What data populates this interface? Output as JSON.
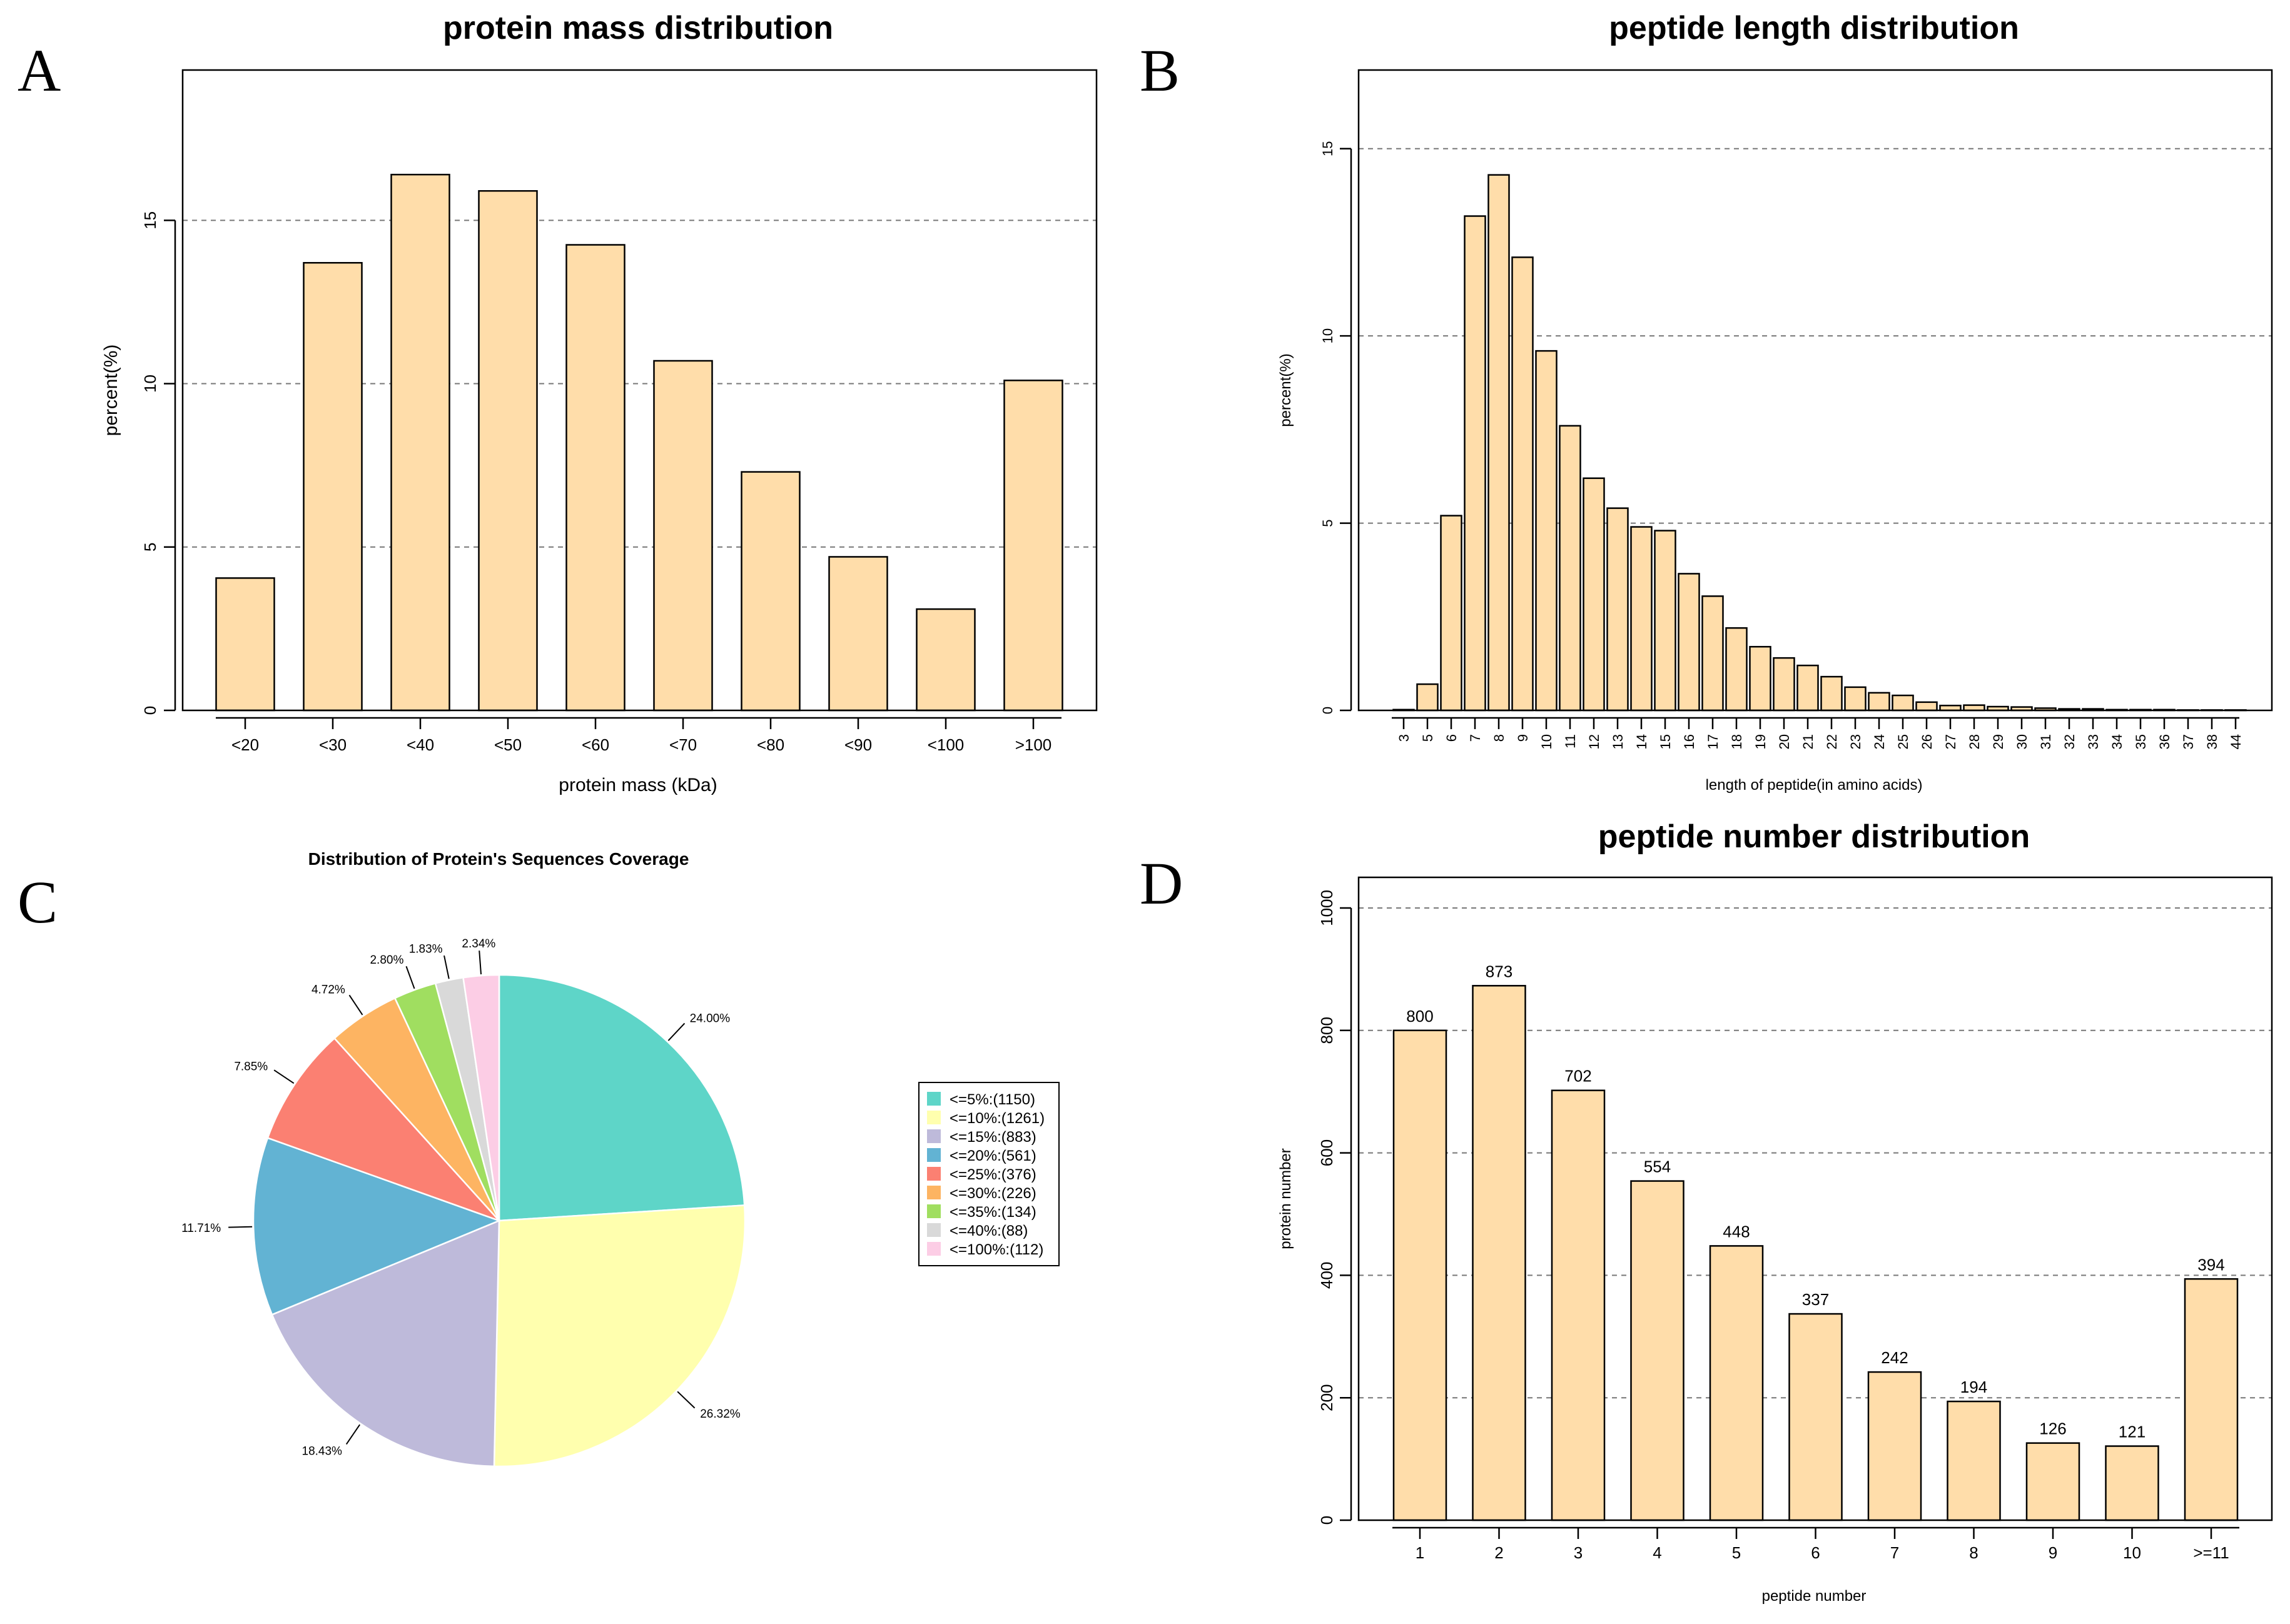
{
  "panels": {
    "a": {
      "letter": "A"
    },
    "b": {
      "letter": "B"
    },
    "c": {
      "letter": "C"
    },
    "d": {
      "letter": "D"
    }
  },
  "colors": {
    "bar_fill": "#FFDDAA",
    "grid": "#777777"
  },
  "chart_data": [
    {
      "id": "protein-mass",
      "type": "bar",
      "title": "protein mass distribution",
      "xlabel": "protein mass (kDa)",
      "ylabel": "percent(%)",
      "categories": [
        "<20",
        "<30",
        "<40",
        "<50",
        "<60",
        "<70",
        "<80",
        "<90",
        "<100",
        ">100"
      ],
      "values": [
        4.05,
        13.7,
        16.4,
        15.9,
        14.25,
        10.7,
        7.3,
        4.7,
        3.1,
        10.1
      ],
      "ylim": [
        0,
        19.6
      ],
      "yticks": [
        0,
        5,
        10,
        15
      ],
      "gridlines": [
        5,
        10,
        15
      ]
    },
    {
      "id": "peptide-length",
      "type": "bar",
      "title": "peptide length distribution",
      "xlabel": "length of peptide(in amino acids)",
      "ylabel": "percent(%)",
      "categories": [
        "3",
        "5",
        "6",
        "7",
        "8",
        "9",
        "10",
        "11",
        "12",
        "13",
        "14",
        "15",
        "16",
        "17",
        "18",
        "19",
        "20",
        "21",
        "22",
        "23",
        "24",
        "25",
        "26",
        "27",
        "28",
        "29",
        "30",
        "31",
        "32",
        "33",
        "34",
        "35",
        "36",
        "37",
        "38",
        "44"
      ],
      "values": [
        0.02,
        0.7,
        5.2,
        13.2,
        14.3,
        12.1,
        9.6,
        7.6,
        6.2,
        5.4,
        4.9,
        4.8,
        3.65,
        3.05,
        2.2,
        1.7,
        1.4,
        1.2,
        0.9,
        0.62,
        0.47,
        0.4,
        0.22,
        0.13,
        0.14,
        0.1,
        0.09,
        0.06,
        0.04,
        0.04,
        0.02,
        0.02,
        0.02,
        0.01,
        0.01,
        0.01
      ],
      "ylim": [
        0,
        17.1
      ],
      "yticks": [
        0,
        5,
        10,
        15
      ],
      "gridlines": [
        5,
        10,
        15
      ]
    },
    {
      "id": "sequence-coverage",
      "type": "pie",
      "title": "Distribution of Protein's Sequences Coverage",
      "slices": [
        {
          "label": "<=5%:(1150)",
          "percent_label": "24.00%",
          "value": 1150,
          "color": "#5ED5C8"
        },
        {
          "label": "<=10%:(1261)",
          "percent_label": "26.32%",
          "value": 1261,
          "color": "#FFFFAE"
        },
        {
          "label": "<=15%:(883)",
          "percent_label": "18.43%",
          "value": 883,
          "color": "#BEBADA"
        },
        {
          "label": "<=20%:(561)",
          "percent_label": "11.71%",
          "value": 561,
          "color": "#62B3D3"
        },
        {
          "label": "<=25%:(376)",
          "percent_label": "7.85%",
          "value": 376,
          "color": "#FB8072"
        },
        {
          "label": "<=30%:(226)",
          "percent_label": "4.72%",
          "value": 226,
          "color": "#FDB462"
        },
        {
          "label": "<=35%:(134)",
          "percent_label": "2.80%",
          "value": 134,
          "color": "#A0DE60"
        },
        {
          "label": "<=40%:(88)",
          "percent_label": "1.83%",
          "value": 88,
          "color": "#D9D9D9"
        },
        {
          "label": "<=100%:(112)",
          "percent_label": "2.34%",
          "value": 112,
          "color": "#FCCDE5"
        }
      ],
      "legend_position": "right"
    },
    {
      "id": "peptide-number",
      "type": "bar",
      "title": "peptide number distribution",
      "xlabel": "peptide number",
      "ylabel": "protein number",
      "categories": [
        "1",
        "2",
        "3",
        "4",
        "5",
        "6",
        "7",
        "8",
        "9",
        "10",
        ">=11"
      ],
      "values": [
        800,
        873,
        702,
        554,
        448,
        337,
        242,
        194,
        126,
        121,
        394
      ],
      "data_labels": [
        "800",
        "873",
        "702",
        "554",
        "448",
        "337",
        "242",
        "194",
        "126",
        "121",
        "394"
      ],
      "ylim": [
        0,
        1050
      ],
      "yticks": [
        0,
        200,
        400,
        600,
        800,
        1000
      ],
      "gridlines": [
        200,
        400,
        600,
        800,
        1000
      ]
    }
  ]
}
